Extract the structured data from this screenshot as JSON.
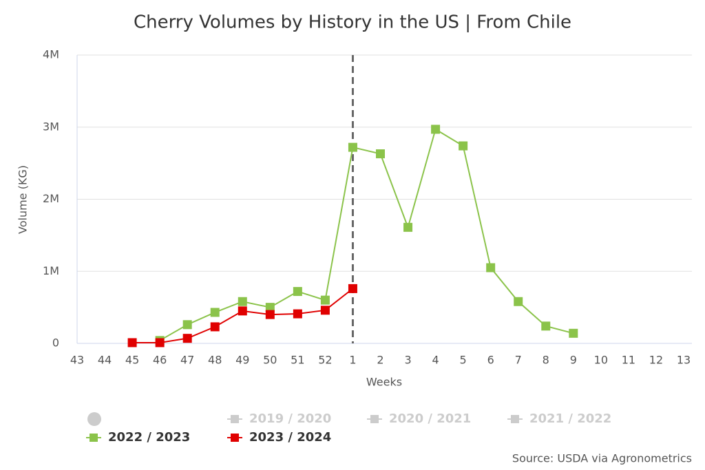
{
  "chart_data": {
    "type": "line",
    "title": "Cherry Volumes by History in the US | From Chile",
    "xlabel": "Weeks",
    "ylabel": "Volume (KG)",
    "source": "Source: USDA via Agronometrics",
    "categories": [
      "43",
      "44",
      "45",
      "46",
      "47",
      "48",
      "49",
      "50",
      "51",
      "52",
      "1",
      "2",
      "3",
      "4",
      "5",
      "6",
      "7",
      "8",
      "9",
      "10",
      "11",
      "12",
      "13"
    ],
    "ylim": [
      0,
      4000000
    ],
    "yticks": [
      0,
      {
        "value": 1000000,
        "label": "1M"
      },
      {
        "value": 2000000,
        "label": "2M"
      },
      {
        "value": 3000000,
        "label": "3M"
      },
      {
        "value": 4000000,
        "label": "4M"
      }
    ],
    "grid": true,
    "plot_line_x": "1",
    "series": [
      {
        "name": "2019 / 2020",
        "color": "#cccccc",
        "visible": false,
        "values": [
          null,
          null,
          null,
          null,
          null,
          null,
          null,
          null,
          null,
          null,
          null,
          null,
          null,
          null,
          null,
          null,
          null,
          null,
          null,
          null,
          null,
          null,
          null
        ]
      },
      {
        "name": "2020 / 2021",
        "color": "#cccccc",
        "visible": false,
        "values": [
          null,
          null,
          null,
          null,
          null,
          null,
          null,
          null,
          null,
          null,
          null,
          null,
          null,
          null,
          null,
          null,
          null,
          null,
          null,
          null,
          null,
          null,
          null
        ]
      },
      {
        "name": "2021 / 2022",
        "color": "#cccccc",
        "visible": false,
        "values": [
          null,
          null,
          null,
          null,
          null,
          null,
          null,
          null,
          null,
          null,
          null,
          null,
          null,
          null,
          null,
          null,
          null,
          null,
          null,
          null,
          null,
          null,
          null
        ]
      },
      {
        "name": "2022 / 2023",
        "color": "#8bc34a",
        "visible": true,
        "values": [
          null,
          null,
          null,
          40000,
          260000,
          430000,
          580000,
          500000,
          720000,
          600000,
          2720000,
          2630000,
          1610000,
          2970000,
          2740000,
          1050000,
          580000,
          240000,
          140000,
          null,
          null,
          null,
          null
        ]
      },
      {
        "name": "2023 / 2024",
        "color": "#e00000",
        "visible": true,
        "values": [
          null,
          null,
          10000,
          10000,
          70000,
          230000,
          450000,
          400000,
          410000,
          460000,
          760000,
          null,
          null,
          null,
          null,
          null,
          null,
          null,
          null,
          null,
          null,
          null,
          null
        ]
      }
    ]
  }
}
